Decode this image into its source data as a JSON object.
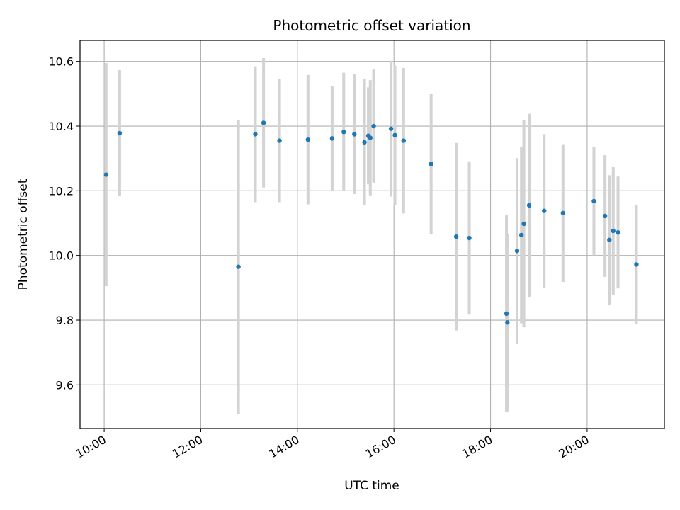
{
  "chart_data": {
    "type": "scatter",
    "title": "Photometric offset variation",
    "xlabel": "UTC time",
    "ylabel": "Photometric offset",
    "x_unit": "hour",
    "xlim": [
      9.5,
      21.6
    ],
    "ylim": [
      9.465,
      10.665
    ],
    "xticks": [
      {
        "value": 10,
        "label": "10:00"
      },
      {
        "value": 12,
        "label": "12:00"
      },
      {
        "value": 14,
        "label": "14:00"
      },
      {
        "value": 16,
        "label": "16:00"
      },
      {
        "value": 18,
        "label": "18:00"
      },
      {
        "value": 20,
        "label": "20:00"
      }
    ],
    "yticks": [
      {
        "value": 9.6,
        "label": "9.6"
      },
      {
        "value": 9.8,
        "label": "9.8"
      },
      {
        "value": 10.0,
        "label": "10.0"
      },
      {
        "value": 10.2,
        "label": "10.2"
      },
      {
        "value": 10.4,
        "label": "10.4"
      },
      {
        "value": 10.6,
        "label": "10.6"
      }
    ],
    "grid": true,
    "marker_color": "#1f77b4",
    "errorbar_color": "#d3d3d3",
    "points": [
      {
        "x": 10.04,
        "y": 10.25,
        "yerr": 0.345
      },
      {
        "x": 10.32,
        "y": 10.378,
        "yerr": 0.195
      },
      {
        "x": 12.78,
        "y": 9.965,
        "yerr": 0.455
      },
      {
        "x": 13.13,
        "y": 10.375,
        "yerr": 0.21
      },
      {
        "x": 13.3,
        "y": 10.41,
        "yerr": 0.2
      },
      {
        "x": 13.63,
        "y": 10.355,
        "yerr": 0.19
      },
      {
        "x": 14.22,
        "y": 10.358,
        "yerr": 0.2
      },
      {
        "x": 14.72,
        "y": 10.362,
        "yerr": 0.162
      },
      {
        "x": 14.96,
        "y": 10.382,
        "yerr": 0.183
      },
      {
        "x": 15.18,
        "y": 10.375,
        "yerr": 0.185
      },
      {
        "x": 15.39,
        "y": 10.35,
        "yerr": 0.195
      },
      {
        "x": 15.47,
        "y": 10.37,
        "yerr": 0.15
      },
      {
        "x": 15.51,
        "y": 10.364,
        "yerr": 0.178
      },
      {
        "x": 15.58,
        "y": 10.4,
        "yerr": 0.175
      },
      {
        "x": 15.94,
        "y": 10.392,
        "yerr": 0.21
      },
      {
        "x": 16.02,
        "y": 10.372,
        "yerr": 0.215
      },
      {
        "x": 16.2,
        "y": 10.355,
        "yerr": 0.225
      },
      {
        "x": 16.77,
        "y": 10.283,
        "yerr": 0.217
      },
      {
        "x": 17.29,
        "y": 10.058,
        "yerr": 0.29
      },
      {
        "x": 17.56,
        "y": 10.054,
        "yerr": 0.237
      },
      {
        "x": 18.33,
        "y": 9.82,
        "yerr": 0.305
      },
      {
        "x": 18.35,
        "y": 9.793,
        "yerr": 0.275
      },
      {
        "x": 18.55,
        "y": 10.014,
        "yerr": 0.287
      },
      {
        "x": 18.64,
        "y": 10.063,
        "yerr": 0.273
      },
      {
        "x": 18.69,
        "y": 10.098,
        "yerr": 0.32
      },
      {
        "x": 18.8,
        "y": 10.155,
        "yerr": 0.283
      },
      {
        "x": 19.11,
        "y": 10.138,
        "yerr": 0.237
      },
      {
        "x": 19.5,
        "y": 10.131,
        "yerr": 0.213
      },
      {
        "x": 20.14,
        "y": 10.168,
        "yerr": 0.168
      },
      {
        "x": 20.37,
        "y": 10.122,
        "yerr": 0.188
      },
      {
        "x": 20.46,
        "y": 10.048,
        "yerr": 0.2
      },
      {
        "x": 20.54,
        "y": 10.076,
        "yerr": 0.197
      },
      {
        "x": 20.64,
        "y": 10.071,
        "yerr": 0.173
      },
      {
        "x": 21.02,
        "y": 9.972,
        "yerr": 0.185
      }
    ]
  }
}
